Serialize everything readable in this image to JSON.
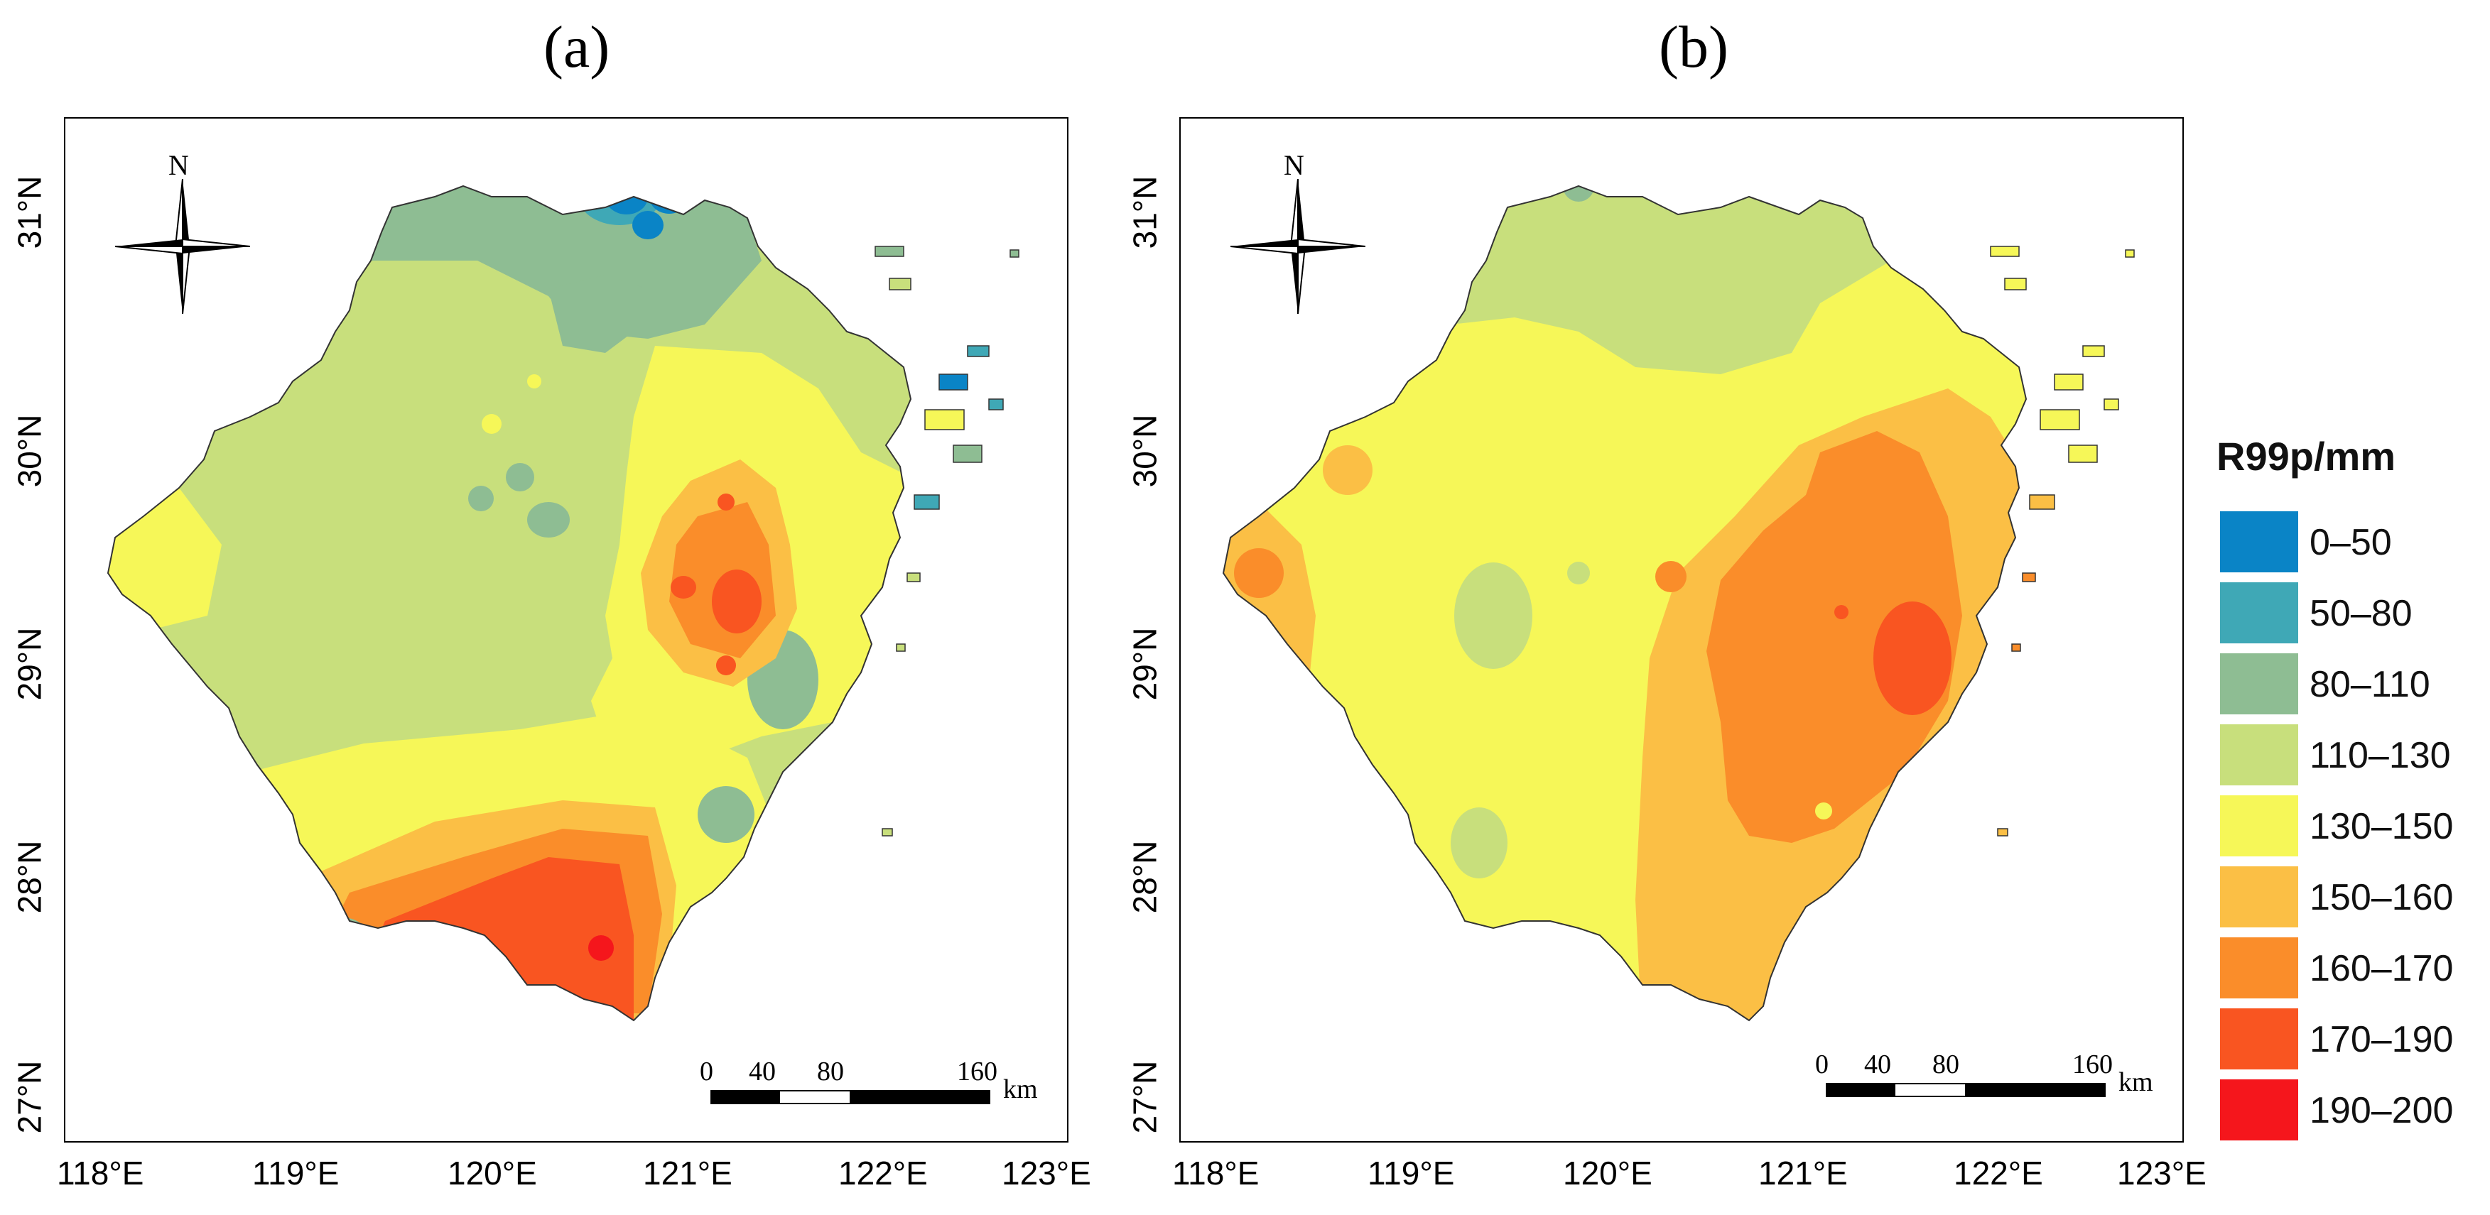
{
  "panels": [
    {
      "label": "(a)"
    },
    {
      "label": "(b)"
    }
  ],
  "axes": {
    "x_ticks": [
      "118°E",
      "119°E",
      "120°E",
      "121°E",
      "122°E",
      "123°E"
    ],
    "y_ticks": [
      "31°N",
      "30°N",
      "29°N",
      "28°N",
      "27°N"
    ]
  },
  "north_arrow": {
    "label": "N",
    "icon": "north-arrow-icon"
  },
  "scale_bar": {
    "labels": [
      "0",
      "40",
      "80",
      "160"
    ],
    "unit": "km"
  },
  "legend": {
    "title": "R99p/mm",
    "classes": [
      {
        "label": "0–50",
        "color": "#0a84c6"
      },
      {
        "label": "50–80",
        "color": "#3fa8b6"
      },
      {
        "label": "80–110",
        "color": "#8ebd93"
      },
      {
        "label": "110–130",
        "color": "#c8df7c"
      },
      {
        "label": "130–150",
        "color": "#f6f758"
      },
      {
        "label": "150–160",
        "color": "#fbbf45"
      },
      {
        "label": "160–170",
        "color": "#fa8d2a"
      },
      {
        "label": "170–190",
        "color": "#f95521"
      },
      {
        "label": "190–200",
        "color": "#f5161c"
      }
    ]
  }
}
